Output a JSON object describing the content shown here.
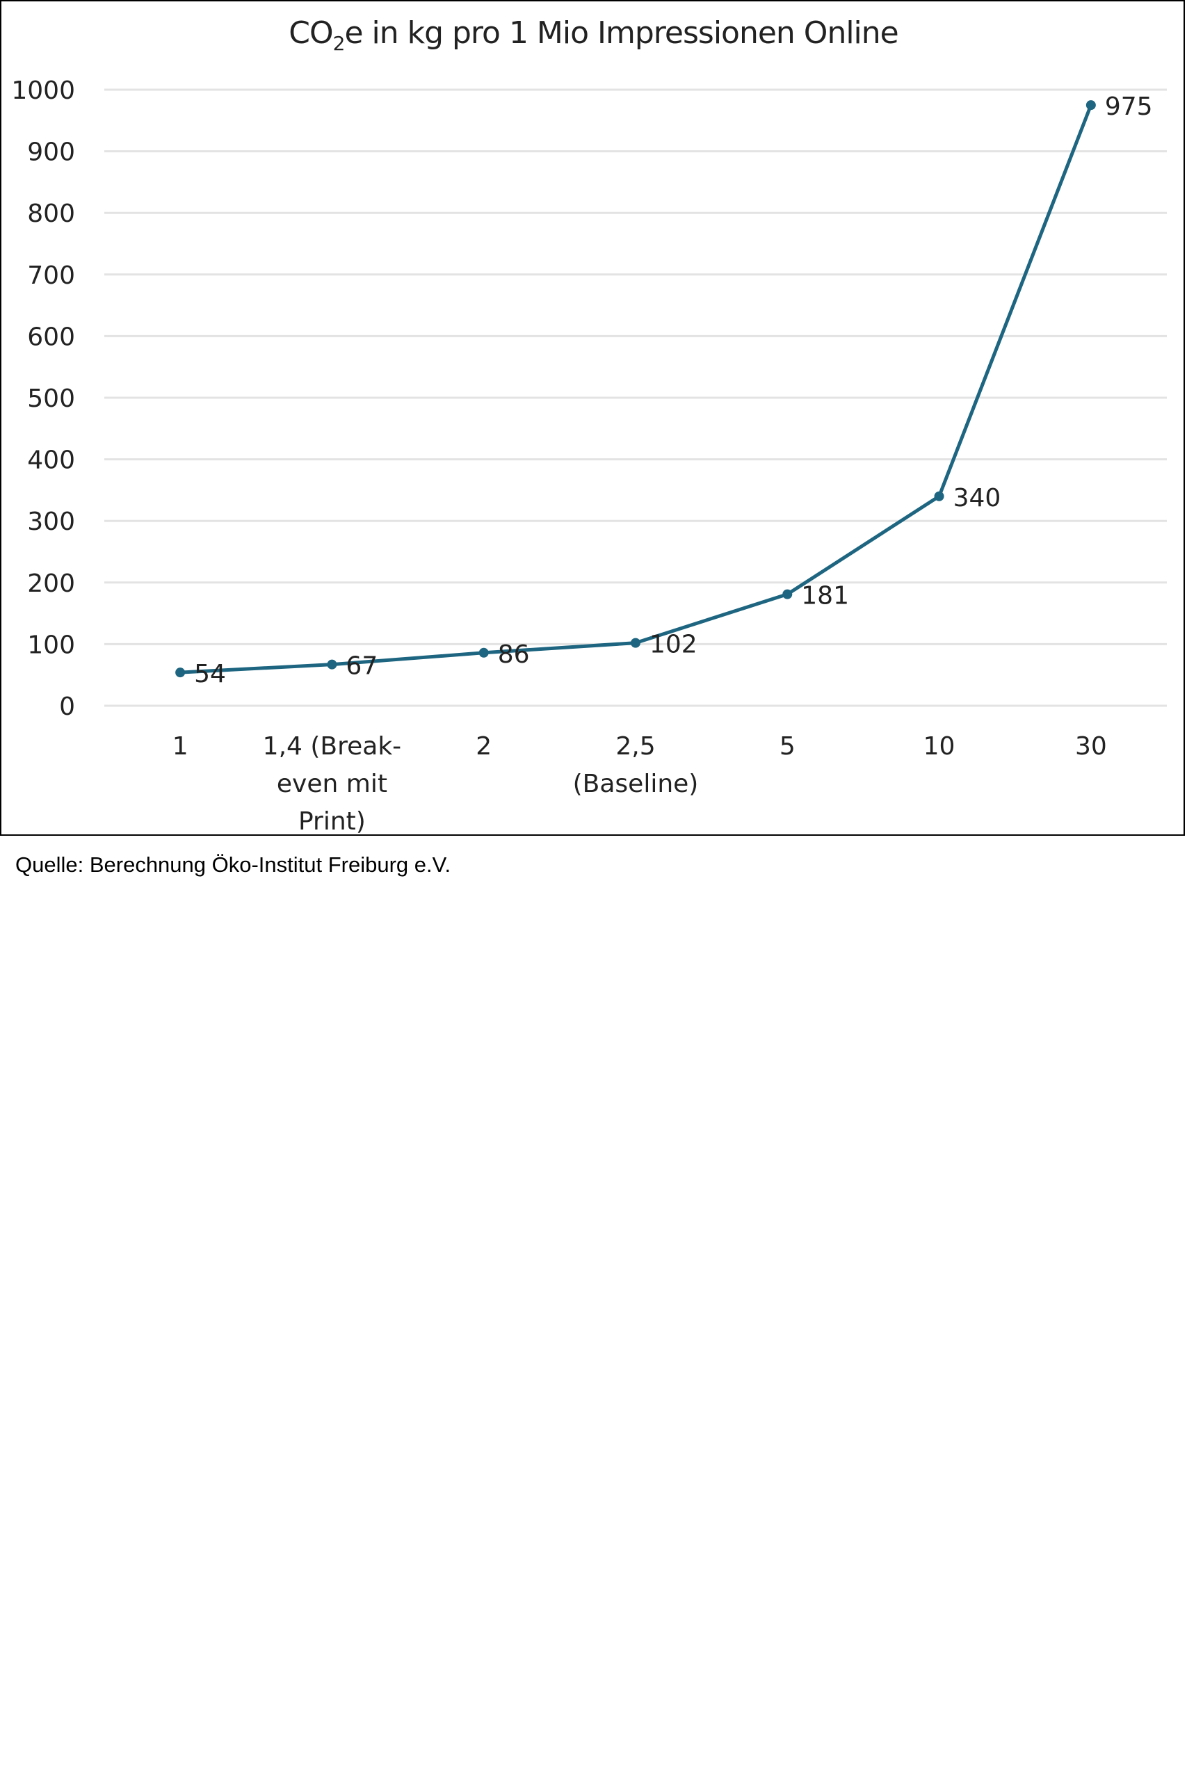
{
  "chart_data": {
    "type": "line",
    "title_main": "CO",
    "title_sub": "2",
    "title_rest": "e in kg pro 1 Mio Impressionen Online",
    "categories": [
      [
        "1"
      ],
      [
        "1,4 (Break-",
        "even mit",
        "Print)"
      ],
      [
        "2"
      ],
      [
        "2,5",
        "(Baseline)"
      ],
      [
        "5"
      ],
      [
        "10"
      ],
      [
        "30"
      ]
    ],
    "series": [
      {
        "name": "CO2e",
        "values": [
          54,
          67,
          86,
          102,
          181,
          340,
          975
        ]
      }
    ],
    "data_labels": [
      "54",
      "67",
      "86",
      "102",
      "181",
      "340",
      "975"
    ],
    "yticks": [
      0,
      100,
      200,
      300,
      400,
      500,
      600,
      700,
      800,
      900,
      1000
    ],
    "ylim": [
      0,
      1000
    ],
    "grid": true,
    "legend": "none",
    "line_color": "#1d6580",
    "grid_color": "#e3e3e3"
  },
  "source": "Quelle: Berechnung Öko-Institut Freiburg e.V."
}
